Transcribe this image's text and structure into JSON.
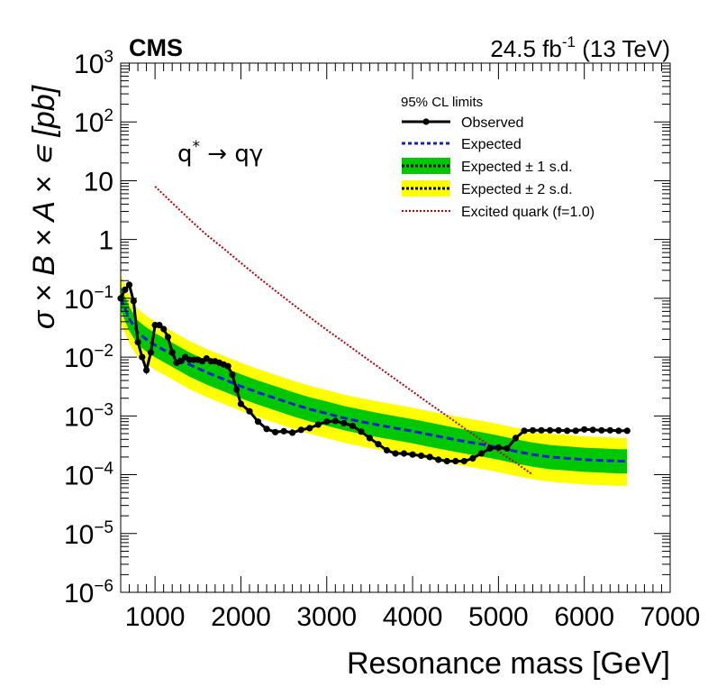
{
  "chart_data": {
    "type": "line",
    "experiment_label": "CMS",
    "lumi_label": "24.5 fb",
    "lumi_sup": "-1",
    "lumi_energy": " (13 TeV)",
    "process_label_main": "q",
    "process_label_sup": "*",
    "process_label_rest": " → qγ",
    "xlabel": "Resonance mass [GeV]",
    "ylabel": "σ × B × A × ∊ [pb]",
    "y_log": true,
    "xlim": [
      600,
      7000
    ],
    "ylim": [
      1e-06,
      1000
    ],
    "x_ticks": [
      1000,
      2000,
      3000,
      4000,
      5000,
      6000,
      7000
    ],
    "y_ticks": [
      {
        "value": 1e-06,
        "base": "10",
        "exp": "−6"
      },
      {
        "value": 1e-05,
        "base": "10",
        "exp": "−5"
      },
      {
        "value": 0.0001,
        "base": "10",
        "exp": "−4"
      },
      {
        "value": 0.001,
        "base": "10",
        "exp": "−3"
      },
      {
        "value": 0.01,
        "base": "10",
        "exp": "−2"
      },
      {
        "value": 0.1,
        "base": "10",
        "exp": "−1"
      },
      {
        "value": 1,
        "base": "1",
        "exp": ""
      },
      {
        "value": 10,
        "base": "10",
        "exp": ""
      },
      {
        "value": 100,
        "base": "10",
        "exp": "2"
      },
      {
        "value": 1000,
        "base": "10",
        "exp": "3"
      }
    ],
    "legend": {
      "title": "95% CL limits",
      "position": "top-right",
      "entries": [
        {
          "key": "observed",
          "label": "Observed"
        },
        {
          "key": "expected",
          "label": "Expected"
        },
        {
          "key": "band1",
          "label": "Expected ± 1 s.d."
        },
        {
          "key": "band2",
          "label": "Expected ± 2 s.d."
        },
        {
          "key": "excited",
          "label": "Excited quark (f=1.0)"
        }
      ]
    },
    "colors": {
      "observed": "#000000",
      "expected": "#1020d0",
      "band1": "#00c800",
      "band2": "#ffff00",
      "excited": "#c00000"
    },
    "series": [
      {
        "key": "observed",
        "name": "Observed",
        "x": [
          600,
          650,
          700,
          750,
          800,
          850,
          900,
          950,
          1000,
          1050,
          1100,
          1150,
          1200,
          1250,
          1300,
          1350,
          1400,
          1450,
          1500,
          1550,
          1600,
          1650,
          1700,
          1750,
          1800,
          1850,
          1900,
          1950,
          2000,
          2100,
          2200,
          2300,
          2400,
          2500,
          2600,
          2700,
          2800,
          2900,
          3000,
          3100,
          3200,
          3300,
          3400,
          3500,
          3600,
          3700,
          3800,
          3900,
          4000,
          4100,
          4200,
          4300,
          4400,
          4500,
          4600,
          4700,
          4800,
          4900,
          5000,
          5100,
          5200,
          5300,
          5400,
          5500,
          5600,
          5700,
          5800,
          5900,
          6000,
          6100,
          6200,
          6300,
          6400,
          6500
        ],
        "y": [
          0.1,
          0.14,
          0.17,
          0.09,
          0.018,
          0.01,
          0.006,
          0.012,
          0.035,
          0.035,
          0.03,
          0.022,
          0.012,
          0.008,
          0.0085,
          0.01,
          0.009,
          0.009,
          0.009,
          0.0085,
          0.0095,
          0.0085,
          0.0085,
          0.008,
          0.0075,
          0.007,
          0.005,
          0.0028,
          0.0016,
          0.0012,
          0.0008,
          0.0006,
          0.00053,
          0.00055,
          0.00052,
          0.00058,
          0.00062,
          0.00071,
          0.0008,
          0.00082,
          0.00075,
          0.00068,
          0.00054,
          0.00042,
          0.00033,
          0.00026,
          0.00023,
          0.00023,
          0.00022,
          0.00021,
          0.0002,
          0.00018,
          0.00017,
          0.00017,
          0.00017,
          0.00019,
          0.00023,
          0.00028,
          0.00029,
          0.00028,
          0.00042,
          0.00056,
          0.00057,
          0.00057,
          0.00057,
          0.00057,
          0.00056,
          0.00056,
          0.00059,
          0.00058,
          0.00057,
          0.00057,
          0.00056,
          0.00056
        ]
      },
      {
        "key": "expected",
        "name": "Expected",
        "x": [
          600,
          700,
          800,
          900,
          1000,
          1200,
          1400,
          1600,
          1800,
          2000,
          2200,
          2400,
          2600,
          2800,
          3000,
          3200,
          3400,
          3600,
          3800,
          4000,
          4200,
          4400,
          4600,
          4800,
          5000,
          5200,
          5400,
          5600,
          5800,
          6000,
          6200,
          6400,
          6500
        ],
        "y": [
          0.1,
          0.045,
          0.026,
          0.02,
          0.016,
          0.011,
          0.0075,
          0.0055,
          0.0042,
          0.0032,
          0.0025,
          0.002,
          0.0016,
          0.0013,
          0.0011,
          0.00092,
          0.0008,
          0.0007,
          0.00062,
          0.00055,
          0.00048,
          0.00042,
          0.00037,
          0.00033,
          0.00029,
          0.00025,
          0.00022,
          0.0002,
          0.00019,
          0.00018,
          0.000175,
          0.00017,
          0.00017
        ]
      },
      {
        "key": "excited",
        "name": "Excited quark (f=1.0)",
        "x": [
          1000,
          1200,
          1400,
          1600,
          1800,
          2000,
          2200,
          2400,
          2600,
          2800,
          3000,
          3200,
          3400,
          3600,
          3800,
          4000,
          4200,
          4400,
          4600,
          4800,
          5000,
          5200,
          5400
        ],
        "y": [
          8,
          4.2,
          2.2,
          1.2,
          0.7,
          0.4,
          0.23,
          0.135,
          0.08,
          0.048,
          0.029,
          0.018,
          0.011,
          0.0068,
          0.0042,
          0.0026,
          0.0016,
          0.001,
          0.00062,
          0.00039,
          0.00025,
          0.00016,
          0.0001
        ]
      }
    ],
    "bands": [
      {
        "key": "band2",
        "name": "Expected ± 2 s.d.",
        "factor_low": 0.38,
        "factor_high": 2.5
      },
      {
        "key": "band1",
        "name": "Expected ± 1 s.d.",
        "factor_low": 0.62,
        "factor_high": 1.6
      }
    ]
  }
}
